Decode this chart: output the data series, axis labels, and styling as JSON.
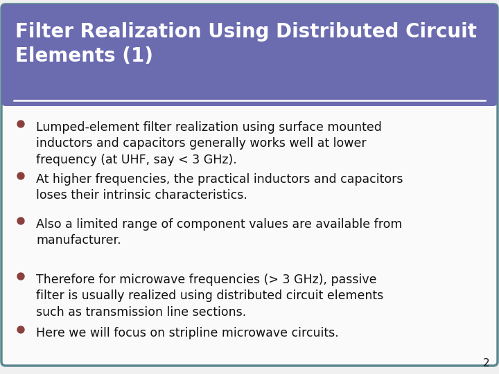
{
  "title_line1": "Filter Realization Using Distributed Circuit",
  "title_line2": "Elements (1)",
  "title_bg_color": "#6B6BB0",
  "title_text_color": "#FFFFFF",
  "slide_bg_color": "#F0F0F0",
  "border_color": "#5B8890",
  "bullet_color": "#8B4040",
  "text_color": "#111111",
  "page_number": "2",
  "bullets": [
    "Lumped-element filter realization using surface mounted\ninductors and capacitors generally works well at lower\nfrequency (at UHF, say < 3 GHz).",
    "At higher frequencies, the practical inductors and capacitors\nloses their intrinsic characteristics.",
    "Also a limited range of component values are available from\nmanufacturer.",
    "Therefore for microwave frequencies (> 3 GHz), passive\nfilter is usually realized using distributed circuit elements\nsuch as transmission line sections.",
    "Here we will focus on stripline microwave circuits."
  ],
  "title_fontsize": 20,
  "bullet_fontsize": 12.5,
  "page_num_fontsize": 11,
  "white_line_color": "#FFFFFF"
}
